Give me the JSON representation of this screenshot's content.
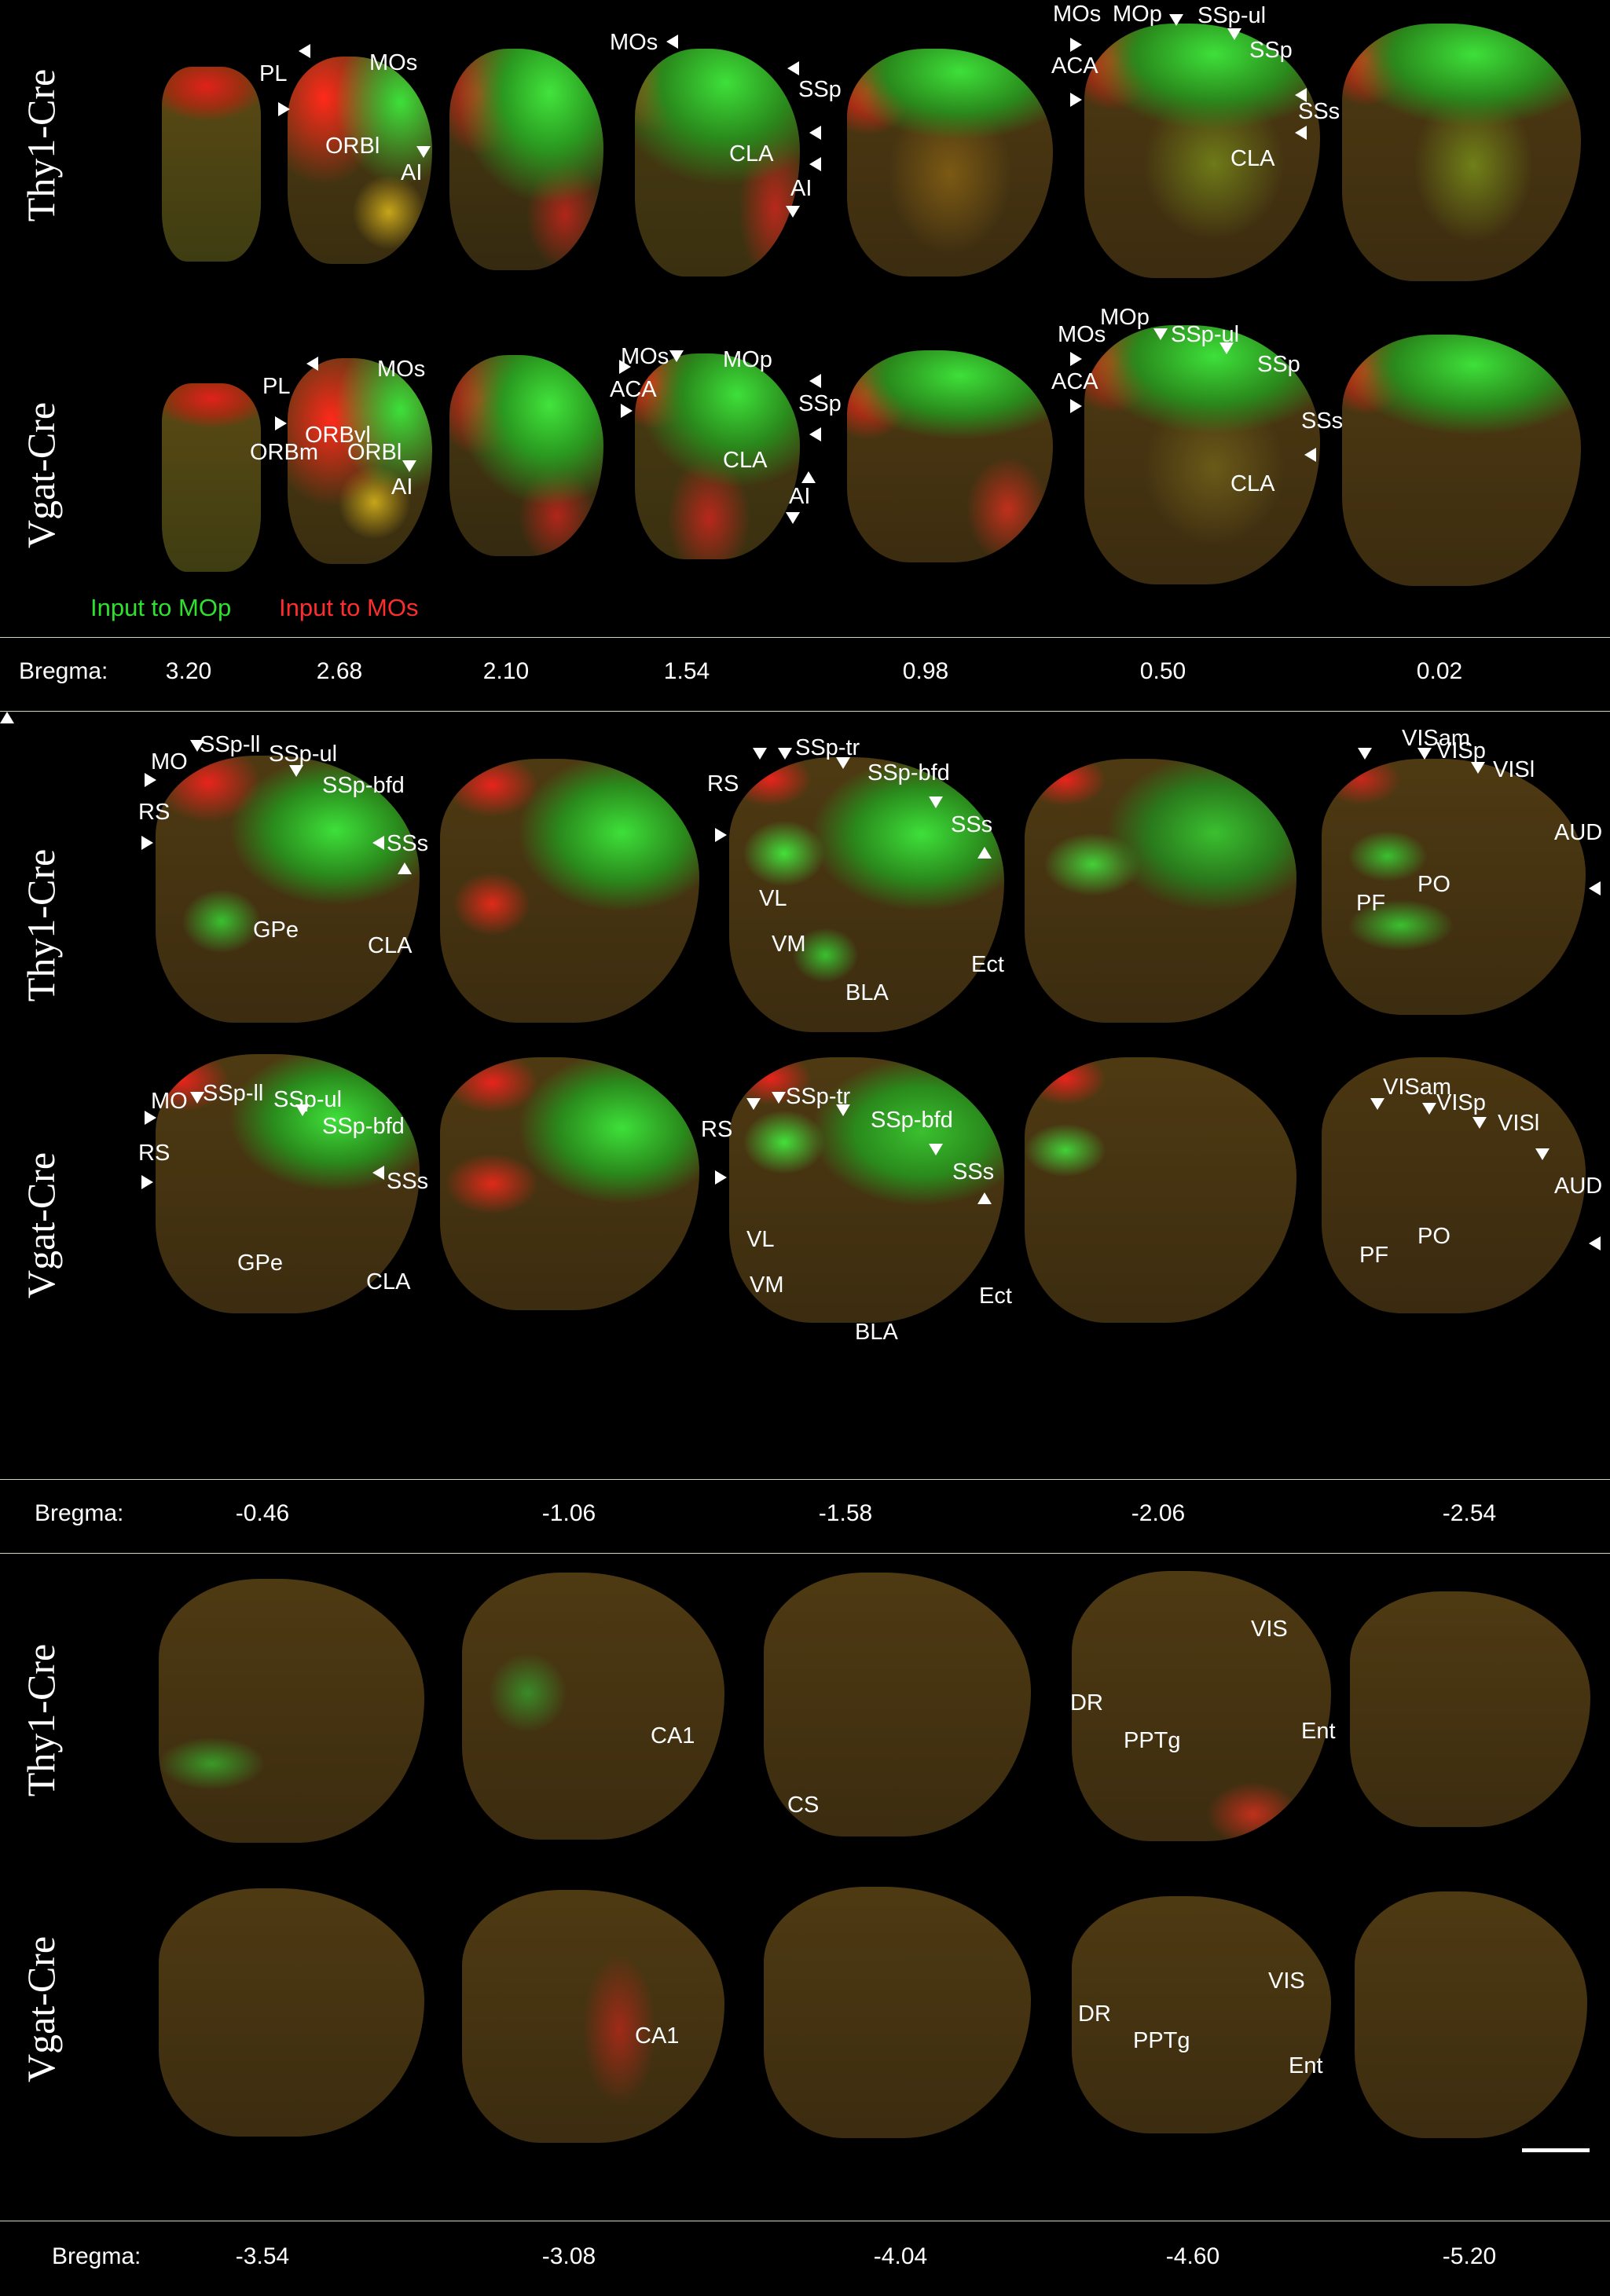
{
  "row_labels": {
    "p1_top": "Thy1-Cre",
    "p1_bottom": "Vgat-Cre",
    "p2_top": "Thy1-Cre",
    "p2_bottom": "Vgat-Cre",
    "p3_top": "Thy1-Cre",
    "p3_bottom": "Vgat-Cre"
  },
  "legend": {
    "green": "Input to MOp",
    "red": "Input to MOs",
    "green_color": "#2fe02f",
    "red_color": "#ff2d2d"
  },
  "bregma": {
    "title": "Bregma:",
    "panel1": [
      "3.20",
      "2.68",
      "2.10",
      "1.54",
      "0.98",
      "0.50",
      "0.02"
    ],
    "panel2": [
      "-0.46",
      "-1.06",
      "-1.58",
      "-2.06",
      "-2.54"
    ],
    "panel3": [
      "-3.54",
      "-3.08",
      "-4.04",
      "-4.60",
      "-5.20"
    ]
  },
  "labels": {
    "PL": "PL",
    "MOs": "MOs",
    "ORBl": "ORBl",
    "AI": "AI",
    "SSp": "SSp",
    "CLA": "CLA",
    "MOp": "MOp",
    "SSp_ul": "SSp-ul",
    "ACA": "ACA",
    "SSs": "SSs",
    "ORBvl": "ORBvl",
    "ORBm": "ORBm",
    "MO": "MO",
    "SSp_ll": "SSp-ll",
    "SSp_bfd": "SSp-bfd",
    "RS": "RS",
    "GPe": "GPe",
    "SSp_tr": "SSp-tr",
    "VL": "VL",
    "VM": "VM",
    "BLA": "BLA",
    "Ect": "Ect",
    "VISam": "VISam",
    "VISp": "VISp",
    "VISl": "VISl",
    "AUD": "AUD",
    "PF": "PF",
    "PO": "PO",
    "CA1": "CA1",
    "CS": "CS",
    "DR": "DR",
    "PPTg": "PPTg",
    "VIS": "VIS",
    "Ent": "Ent"
  }
}
